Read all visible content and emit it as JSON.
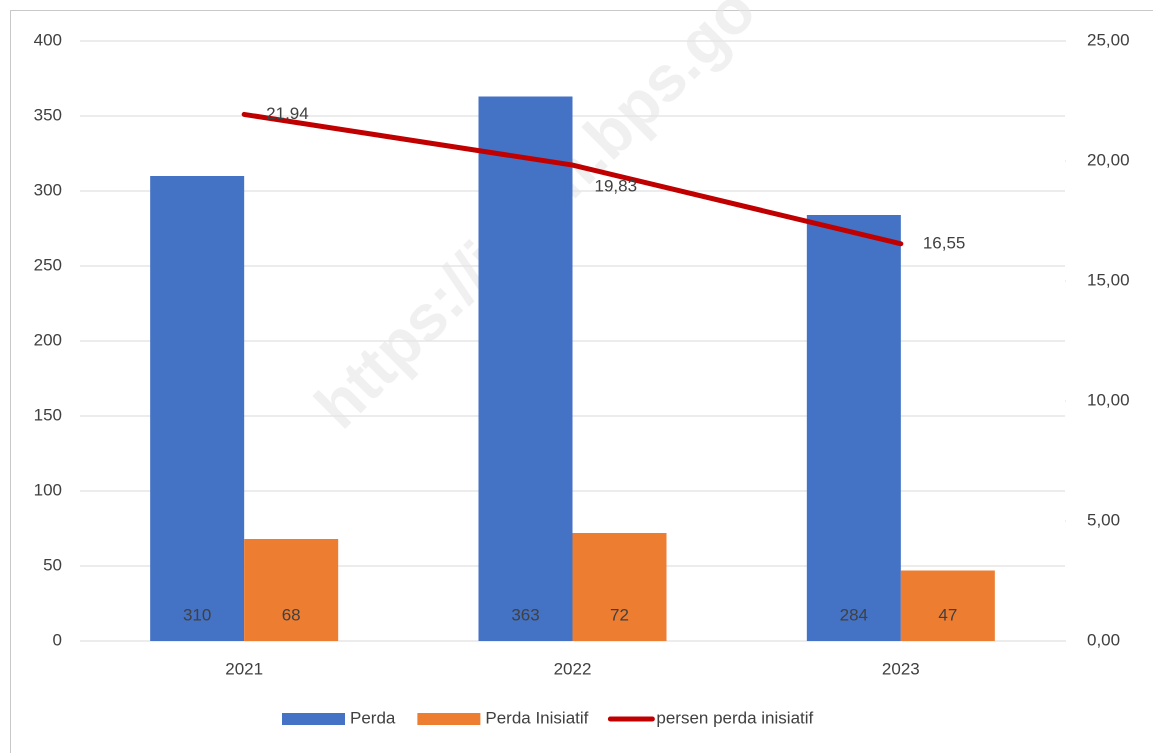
{
  "chart_data": {
    "type": "bar",
    "watermark": "https://jatim.bps.go",
    "categories": [
      "2021",
      "2022",
      "2023"
    ],
    "series": [
      {
        "name": "Perda",
        "color": "#4472c4",
        "type": "bar",
        "values": [
          310,
          363,
          284
        ]
      },
      {
        "name": "Perda Inisiatif",
        "color": "#ed7d31",
        "type": "bar",
        "values": [
          68,
          72,
          47
        ]
      },
      {
        "name": "persen perda inisiatif",
        "color": "#c00000",
        "type": "line",
        "axis": "y2",
        "values": [
          21.94,
          19.83,
          16.55
        ],
        "value_labels": [
          "21,94",
          "19,83",
          "16,55"
        ]
      }
    ],
    "ylim": [
      0,
      400
    ],
    "yticks": [
      0,
      50,
      100,
      150,
      200,
      250,
      300,
      350,
      400
    ],
    "y2lim": [
      0,
      25
    ],
    "y2ticks": [
      {
        "value": 0,
        "label": "0,00"
      },
      {
        "value": 5,
        "label": "5,00"
      },
      {
        "value": 10,
        "label": "10,00"
      },
      {
        "value": 15,
        "label": "15,00"
      },
      {
        "value": 20,
        "label": "20,00"
      },
      {
        "value": 25,
        "label": "25,00"
      }
    ],
    "grid": true,
    "legend": "bottom"
  }
}
